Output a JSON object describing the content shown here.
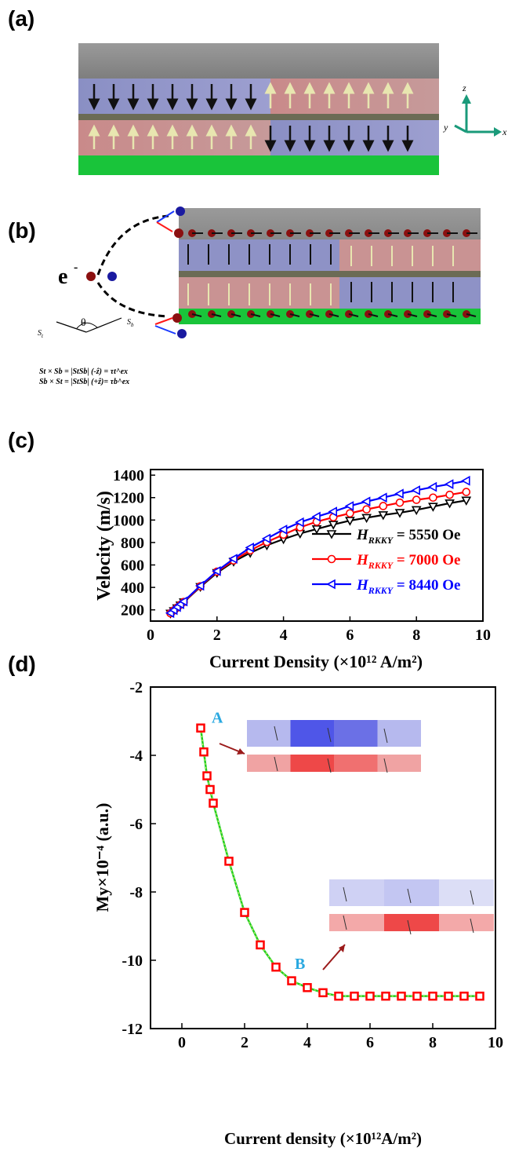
{
  "panels": {
    "a": "(a)",
    "b": "(b)",
    "c": "(c)",
    "d": "(d)"
  },
  "axes3d": {
    "z": "z",
    "y": "y",
    "x": "x"
  },
  "panel_b": {
    "electron": "e",
    "electron_sup": "-",
    "theta": "θ",
    "st": "S",
    "st_sub": "t",
    "sb": "S",
    "sb_sub": "b",
    "eq1": "St × Sb = |StSb| (-ẑ) = τt^ex",
    "eq2": "Sb × St = |StSb|  (+ẑ)= τb^ex"
  },
  "chart_data": [
    {
      "type": "line",
      "panel": "c",
      "xlabel": "Current Density (×10¹² A/m²)",
      "ylabel": "Velocity (m/s)",
      "xlim": [
        0,
        10
      ],
      "ylim": [
        100,
        1450
      ],
      "xticks": [
        "0",
        "2",
        "4",
        "6",
        "8",
        "10"
      ],
      "yticks": [
        "200",
        "400",
        "600",
        "800",
        "1000",
        "1200",
        "1400"
      ],
      "legend_position": "right",
      "series": [
        {
          "name": "H_RKKY = 5550 Oe",
          "label_main": "H",
          "label_sub": "RKKY",
          "label_rest": "= 5550 Oe",
          "color": "#000000",
          "marker": "triangle-down",
          "x": [
            0.6,
            0.7,
            0.8,
            0.9,
            1,
            1.5,
            2,
            2.5,
            3,
            3.5,
            4,
            4.5,
            5,
            5.5,
            6,
            6.5,
            7,
            7.5,
            8,
            8.5,
            9,
            9.5
          ],
          "y": [
            168,
            190,
            215,
            240,
            268,
            405,
            530,
            630,
            708,
            775,
            830,
            880,
            920,
            960,
            995,
            1020,
            1045,
            1065,
            1090,
            1120,
            1150,
            1175
          ]
        },
        {
          "name": "H_RKKY = 7000 Oe",
          "label_main": "H",
          "label_sub": "RKKY",
          "label_rest": "= 7000 Oe",
          "color": "#ff0000",
          "marker": "circle",
          "x": [
            0.6,
            0.7,
            0.8,
            0.9,
            1,
            1.5,
            2,
            2.5,
            3,
            3.5,
            4,
            4.5,
            5,
            5.5,
            6,
            6.5,
            7,
            7.5,
            8,
            8.5,
            9,
            9.5
          ],
          "y": [
            170,
            195,
            220,
            245,
            270,
            410,
            540,
            640,
            730,
            805,
            870,
            935,
            985,
            1025,
            1060,
            1095,
            1125,
            1155,
            1180,
            1200,
            1225,
            1250
          ]
        },
        {
          "name": "H_RKKY = 8440 Oe",
          "label_main": "H",
          "label_sub": "RKKY",
          "label_rest": "= 8440 Oe",
          "color": "#0000ff",
          "marker": "triangle-left",
          "x": [
            0.6,
            0.7,
            0.8,
            0.9,
            1,
            1.5,
            2,
            2.5,
            3,
            3.5,
            4,
            4.5,
            5,
            5.5,
            6,
            6.5,
            7,
            7.5,
            8,
            8.5,
            9,
            9.5
          ],
          "y": [
            172,
            198,
            225,
            250,
            275,
            415,
            545,
            655,
            755,
            835,
            915,
            980,
            1030,
            1075,
            1125,
            1165,
            1200,
            1235,
            1265,
            1295,
            1320,
            1350
          ]
        }
      ]
    },
    {
      "type": "line",
      "panel": "d",
      "xlabel": "Current density (×10¹²A/m²)",
      "ylabel": "My×10⁻⁴ (a.u.)",
      "xlim": [
        -1,
        10
      ],
      "ylim": [
        -12,
        -2
      ],
      "xticks": [
        "0",
        "2",
        "4",
        "6",
        "8",
        "10"
      ],
      "yticks": [
        "-2",
        "-4",
        "-6",
        "-8",
        "-10",
        "-12"
      ],
      "series": [
        {
          "name": "My",
          "color": "#ff0000",
          "line_color": "#22cc22",
          "marker": "square",
          "x": [
            0.6,
            0.7,
            0.8,
            0.9,
            1,
            1.5,
            2,
            2.5,
            3,
            3.5,
            4,
            4.5,
            5,
            5.5,
            6,
            6.5,
            7,
            7.5,
            8,
            8.5,
            9,
            9.5
          ],
          "y": [
            -3.2,
            -3.9,
            -4.6,
            -5,
            -5.4,
            -7.1,
            -8.6,
            -9.55,
            -10.2,
            -10.6,
            -10.8,
            -10.95,
            -11.05,
            -11.05,
            -11.05,
            -11.05,
            -11.05,
            -11.05,
            -11.05,
            -11.05,
            -11.05,
            -11.05
          ]
        }
      ],
      "annotations": [
        {
          "label": "A",
          "color": "#29a8e0"
        },
        {
          "label": "B",
          "color": "#29a8e0"
        }
      ]
    }
  ]
}
